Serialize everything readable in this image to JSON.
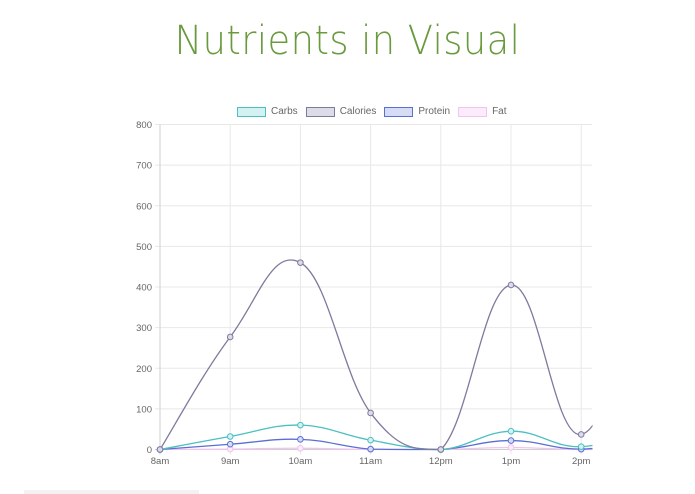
{
  "page": {
    "title": "Nutrients in Visual"
  },
  "legend": [
    {
      "label": "Carbs",
      "border": "#4bc0c0",
      "fill": "#d4f1f1"
    },
    {
      "label": "Calories",
      "border": "#7e7a9e",
      "fill": "#dcdbe8"
    },
    {
      "label": "Protein",
      "border": "#5b6fd1",
      "fill": "#d6dcf6"
    },
    {
      "label": "Fat",
      "border": "#f0c4ee",
      "fill": "#fcecfb"
    }
  ],
  "chart_data": {
    "type": "line",
    "title": "Nutrients in Visual",
    "xlabel": "",
    "ylabel": "",
    "categories": [
      "8am",
      "9am",
      "10am",
      "11am",
      "12pm",
      "1pm",
      "2pm"
    ],
    "series": [
      {
        "name": "Carbs",
        "color": "#4bc0c0",
        "values": [
          0,
          32,
          60,
          23,
          0,
          45,
          7
        ]
      },
      {
        "name": "Calories",
        "color": "#7e7a9e",
        "values": [
          0,
          277,
          460,
          90,
          0,
          405,
          37
        ]
      },
      {
        "name": "Protein",
        "color": "#5b6fd1",
        "values": [
          0,
          13,
          25,
          1,
          0,
          22,
          1
        ]
      },
      {
        "name": "Fat",
        "color": "#f0c4ee",
        "values": [
          0,
          1,
          3,
          0,
          0,
          5,
          0
        ]
      }
    ],
    "yticks": [
      0,
      100,
      200,
      300,
      400,
      500,
      600,
      700,
      800
    ],
    "ylim": [
      0,
      800
    ],
    "grid": true,
    "legend_position": "top",
    "interpolation": "smooth"
  }
}
